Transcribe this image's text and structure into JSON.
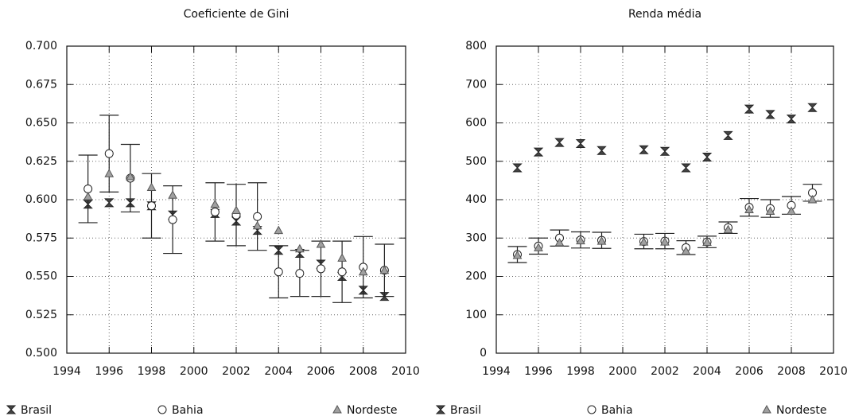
{
  "chart_data": [
    {
      "type": "scatter",
      "title": "Coeficiente de Gini",
      "x": [
        1995,
        1996,
        1997,
        1998,
        1999,
        2001,
        2002,
        2003,
        2004,
        2005,
        2006,
        2007,
        2008,
        2009
      ],
      "series": [
        {
          "name": "Brasil",
          "color": "#444444",
          "marker": "bowtie",
          "values": [
            0.597,
            0.598,
            0.598,
            0.596,
            0.59,
            0.591,
            0.586,
            0.58,
            0.567,
            0.565,
            0.558,
            0.55,
            0.541,
            0.537
          ]
        },
        {
          "name": "Bahia",
          "color": "#ffffff",
          "marker": "circle",
          "values": [
            0.607,
            0.63,
            0.614,
            0.596,
            0.587,
            0.592,
            0.59,
            0.589,
            0.553,
            0.552,
            0.555,
            0.553,
            0.556,
            0.554
          ],
          "errors": [
            0.022,
            0.025,
            0.022,
            0.021,
            0.022,
            0.019,
            0.02,
            0.022,
            0.017,
            0.015,
            0.018,
            0.02,
            0.02,
            0.017
          ]
        },
        {
          "name": "Nordeste",
          "color": "#a0a0a0",
          "marker": "triangle",
          "values": [
            0.602,
            0.617,
            0.615,
            0.608,
            0.603,
            0.597,
            0.593,
            0.583,
            0.58,
            0.568,
            0.571,
            0.562,
            0.553,
            0.554
          ]
        }
      ],
      "xlim": [
        1994,
        2010
      ],
      "xticks": [
        1994,
        1996,
        1998,
        2000,
        2002,
        2004,
        2006,
        2008,
        2010
      ],
      "ylim": [
        0.5,
        0.7
      ],
      "yticks": [
        {
          "value": 0.5,
          "label": "0.500"
        },
        {
          "value": 0.525,
          "label": "0.525"
        },
        {
          "value": 0.55,
          "label": "0.550"
        },
        {
          "value": 0.575,
          "label": "0.575"
        },
        {
          "value": 0.6,
          "label": "0.600"
        },
        {
          "value": 0.625,
          "label": "0.625"
        },
        {
          "value": 0.65,
          "label": "0.650"
        },
        {
          "value": 0.675,
          "label": "0.675"
        },
        {
          "value": 0.7,
          "label": "0.700"
        }
      ],
      "grid": true,
      "legend": "bottom"
    },
    {
      "type": "scatter",
      "title": "Renda média",
      "x": [
        1995,
        1996,
        1997,
        1998,
        1999,
        2001,
        2002,
        2003,
        2004,
        2005,
        2006,
        2007,
        2008,
        2009
      ],
      "series": [
        {
          "name": "Brasil",
          "color": "#444444",
          "marker": "bowtie",
          "values": [
            483,
            524,
            549,
            546,
            528,
            530,
            526,
            483,
            511,
            567,
            636,
            622,
            610,
            640
          ]
        },
        {
          "name": "Bahia",
          "color": "#ffffff",
          "marker": "circle",
          "values": [
            257,
            279,
            300,
            295,
            294,
            291,
            292,
            275,
            290,
            327,
            380,
            377,
            385,
            418
          ],
          "errors": [
            21,
            21,
            21,
            21,
            21,
            19,
            20,
            18,
            15,
            15,
            23,
            23,
            23,
            22
          ]
        },
        {
          "name": "Nordeste",
          "color": "#a0a0a0",
          "marker": "triangle",
          "values": [
            255,
            275,
            288,
            293,
            292,
            290,
            290,
            266,
            289,
            322,
            374,
            370,
            370,
            400
          ]
        }
      ],
      "xlim": [
        1994,
        2010
      ],
      "xticks": [
        1994,
        1996,
        1998,
        2000,
        2002,
        2004,
        2006,
        2008,
        2010
      ],
      "ylim": [
        0,
        800
      ],
      "yticks": [
        0,
        100,
        200,
        300,
        400,
        500,
        600,
        700,
        800
      ],
      "grid": true,
      "legend": "bottom"
    }
  ]
}
